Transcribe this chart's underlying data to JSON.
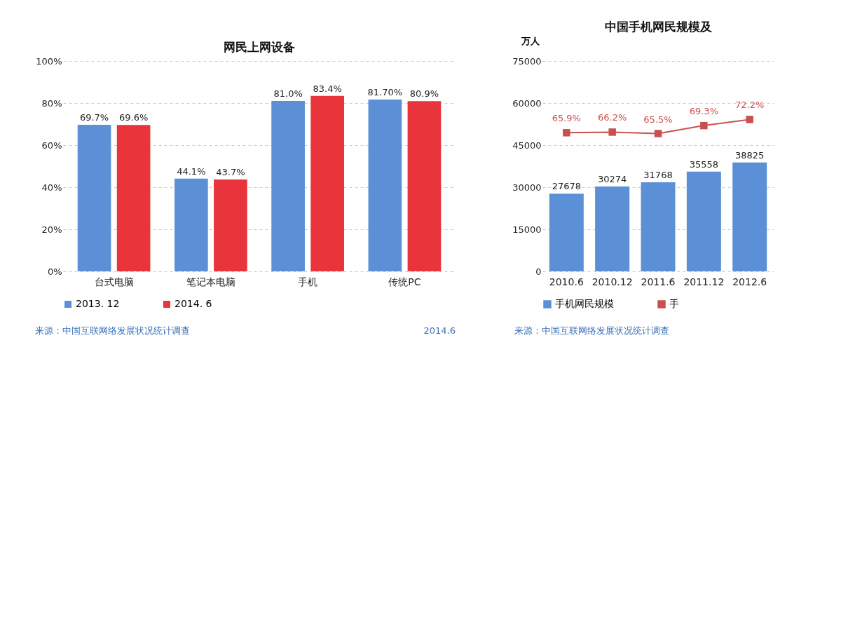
{
  "chart_data": [
    {
      "type": "bar",
      "title": "网民上网设备",
      "categories": [
        "台式电脑",
        "笔记本电脑",
        "手机",
        "传统PC"
      ],
      "series": [
        {
          "name": "2013. 12",
          "color": "#5b8fd6",
          "values": [
            69.7,
            44.1,
            81.0,
            81.7
          ],
          "value_labels": [
            "69.7%",
            "44.1%",
            "81.0%",
            "81.70%"
          ]
        },
        {
          "name": "2014. 6",
          "color": "#e8343a",
          "values": [
            69.6,
            43.7,
            83.4,
            80.9
          ],
          "value_labels": [
            "69.6%",
            "43.7%",
            "83.4%",
            "80.9%"
          ]
        }
      ],
      "ylim": [
        0,
        100
      ],
      "yticks": [
        {
          "value": 0,
          "label": "0%"
        },
        {
          "value": 20,
          "label": "20%"
        },
        {
          "value": 40,
          "label": "40%"
        },
        {
          "value": 60,
          "label": "60%"
        },
        {
          "value": 80,
          "label": "80%"
        },
        {
          "value": 100,
          "label": "100%"
        }
      ],
      "grid": "y",
      "legend": "bottom",
      "annotations": [
        "来源：中国互联网络发展状况统计调查",
        "2014.6"
      ]
    },
    {
      "type": "bar",
      "title": "中国手机网民规模及",
      "ylabel": "万人",
      "categories": [
        "2010.6",
        "2010.12",
        "2011.6",
        "2011.12",
        "2012.6"
      ],
      "series": [
        {
          "name": "手机网民规模",
          "color": "#5b8fd6",
          "values": [
            27678,
            30274,
            31768,
            35558,
            38825
          ],
          "value_labels": [
            "27678",
            "30274",
            "31768",
            "35558",
            "38825"
          ]
        },
        {
          "name": "手",
          "type": "line",
          "axis": "y2",
          "color": "#c9504f",
          "values": [
            65.9,
            66.2,
            65.5,
            69.3,
            72.2
          ],
          "value_labels": [
            "65.9%",
            "66.2%",
            "65.5%",
            "69.3%",
            "72.2%"
          ]
        }
      ],
      "ylim": [
        0,
        75000
      ],
      "yticks": [
        0,
        15000,
        30000,
        45000,
        60000,
        75000
      ],
      "y2lim": [
        0,
        100
      ],
      "marker": "square",
      "line_style": "solid",
      "grid": "y",
      "legend": "bottom",
      "annotations": [
        "来源：中国互联网络发展状况统计调查"
      ]
    }
  ]
}
